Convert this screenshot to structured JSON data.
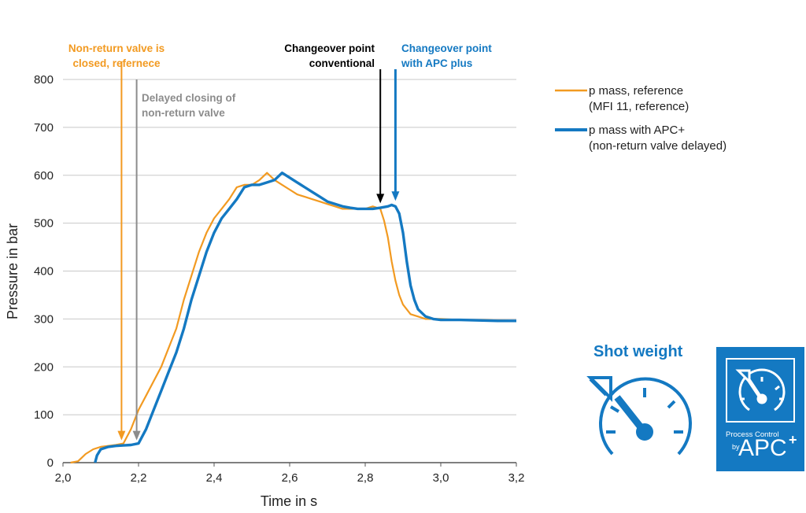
{
  "colors": {
    "reference": "#f29a21",
    "apc": "#1479c2",
    "delayed": "#8c8c8c",
    "conventional": "#000000",
    "grid": "#c8c8c8"
  },
  "chart_data": {
    "type": "line",
    "xlabel": "Time in s",
    "ylabel": "Pressure in bar",
    "xlim": [
      2.0,
      3.2
    ],
    "ylim": [
      0,
      800
    ],
    "x_ticks": [
      "2,0",
      "2,2",
      "2,4",
      "2,6",
      "2,8",
      "3,0",
      "3,2"
    ],
    "y_ticks": [
      "0",
      "100",
      "200",
      "300",
      "400",
      "500",
      "600",
      "700",
      "800"
    ],
    "grid": "horizontal",
    "legend_position": "right",
    "series": [
      {
        "name": "p mass, reference",
        "name_line2": "(MFI 11, reference)",
        "color": "#f29a21",
        "x": [
          2.02,
          2.04,
          2.06,
          2.08,
          2.1,
          2.12,
          2.14,
          2.16,
          2.18,
          2.2,
          2.22,
          2.24,
          2.26,
          2.28,
          2.3,
          2.32,
          2.34,
          2.36,
          2.38,
          2.4,
          2.42,
          2.44,
          2.46,
          2.48,
          2.5,
          2.52,
          2.54,
          2.56,
          2.58,
          2.6,
          2.62,
          2.64,
          2.66,
          2.68,
          2.7,
          2.72,
          2.74,
          2.76,
          2.78,
          2.8,
          2.82,
          2.84,
          2.85,
          2.86,
          2.87,
          2.88,
          2.89,
          2.9,
          2.92,
          2.94,
          2.96,
          2.98,
          3.0,
          3.05,
          3.1,
          3.15,
          3.2
        ],
        "y": [
          0,
          3,
          18,
          28,
          33,
          35,
          37,
          40,
          70,
          110,
          140,
          170,
          200,
          240,
          280,
          340,
          390,
          440,
          480,
          510,
          530,
          550,
          575,
          580,
          580,
          590,
          605,
          590,
          580,
          570,
          560,
          555,
          550,
          545,
          540,
          535,
          530,
          530,
          530,
          530,
          535,
          530,
          505,
          470,
          420,
          380,
          350,
          330,
          310,
          305,
          300,
          300,
          300,
          298,
          298,
          297,
          296
        ]
      },
      {
        "name": "p mass with APC+",
        "name_line2": "(non-return valve delayed)",
        "color": "#1479c2",
        "x": [
          2.085,
          2.09,
          2.1,
          2.12,
          2.14,
          2.16,
          2.18,
          2.2,
          2.22,
          2.24,
          2.26,
          2.28,
          2.3,
          2.32,
          2.34,
          2.36,
          2.38,
          2.4,
          2.42,
          2.44,
          2.46,
          2.48,
          2.5,
          2.52,
          2.54,
          2.56,
          2.58,
          2.6,
          2.62,
          2.64,
          2.66,
          2.68,
          2.7,
          2.72,
          2.74,
          2.76,
          2.78,
          2.8,
          2.82,
          2.84,
          2.86,
          2.87,
          2.88,
          2.89,
          2.9,
          2.91,
          2.92,
          2.93,
          2.94,
          2.96,
          2.98,
          3.0,
          3.05,
          3.1,
          3.15,
          3.2
        ],
        "y": [
          0,
          15,
          28,
          33,
          35,
          36,
          37,
          40,
          70,
          110,
          150,
          190,
          230,
          280,
          340,
          390,
          440,
          480,
          510,
          530,
          550,
          575,
          580,
          580,
          585,
          590,
          605,
          595,
          585,
          575,
          565,
          555,
          545,
          540,
          535,
          532,
          530,
          530,
          530,
          532,
          535,
          538,
          535,
          520,
          480,
          420,
          370,
          340,
          320,
          305,
          300,
          298,
          298,
          297,
          296,
          296
        ]
      }
    ],
    "annotations": [
      {
        "id": "nrv-reference",
        "lines": [
          "Non-return valve is",
          "closed, refernece"
        ],
        "x": 2.155,
        "y": 40,
        "color": "#f29a21"
      },
      {
        "id": "nrv-delayed",
        "lines": [
          "Delayed closing of",
          "non-return valve"
        ],
        "x": 2.195,
        "y": 40,
        "color": "#8c8c8c"
      },
      {
        "id": "changeover-conventional",
        "lines": [
          "Changeover point",
          "conventional"
        ],
        "x": 2.84,
        "y": 535,
        "color": "#000000"
      },
      {
        "id": "changeover-apc",
        "lines": [
          "Changeover point",
          "with APC plus"
        ],
        "x": 2.88,
        "y": 540,
        "color": "#1479c2"
      }
    ]
  },
  "panel": {
    "title": "Shot weight",
    "gauge_icon": "gauge-with-arrow-icon",
    "badge_small": "Process Control",
    "badge_by": "by",
    "badge_big": "APC",
    "badge_plus": "+"
  }
}
